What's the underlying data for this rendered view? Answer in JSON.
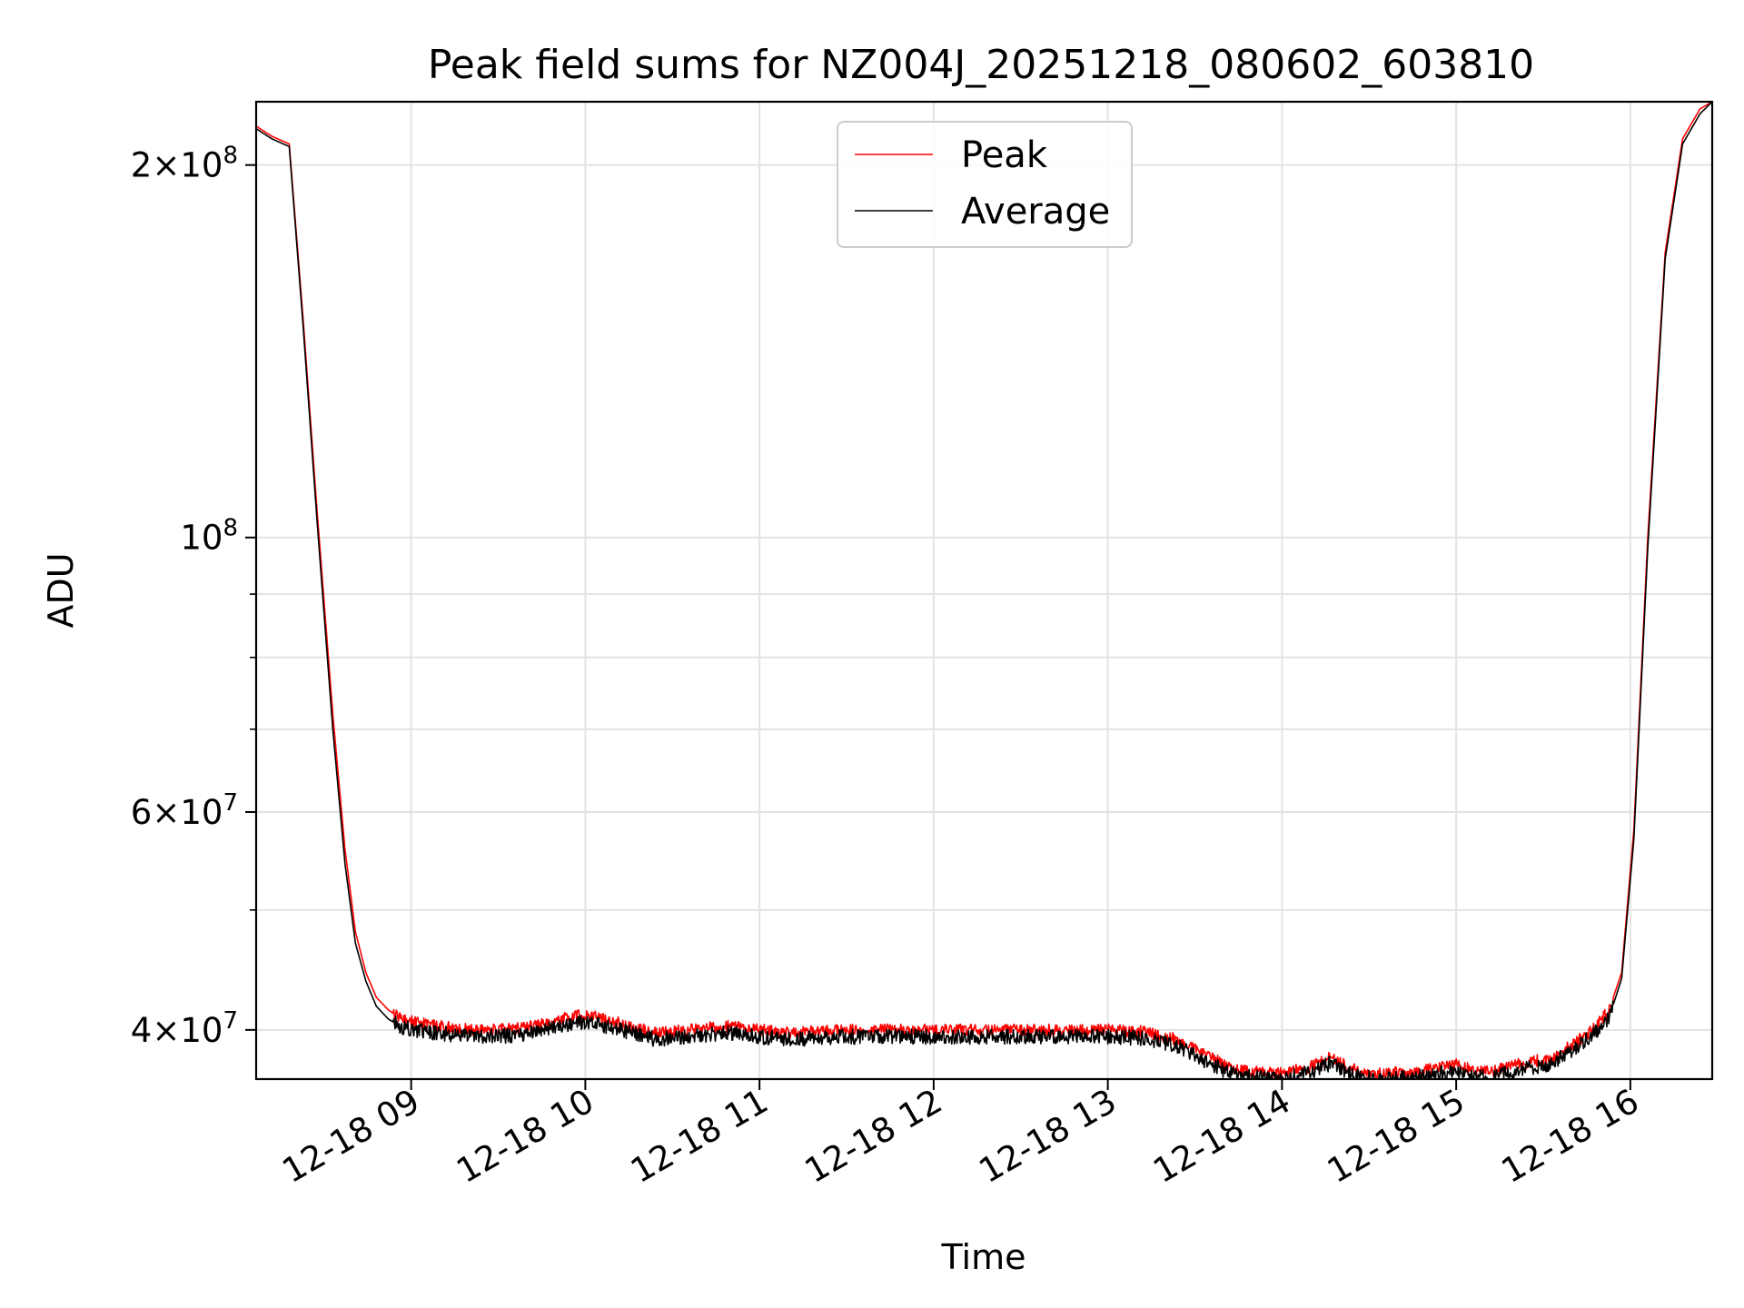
{
  "chart_data": {
    "type": "line",
    "title": "Peak field sums for NZ004J_20251218_080602_603810",
    "xlabel": "Time",
    "ylabel": "ADU",
    "yscale": "log",
    "xlim": [
      8.11,
      16.47
    ],
    "ylim": [
      36500000,
      225000000
    ],
    "grid": true,
    "legend_position": "upper center",
    "x_ticks": [
      {
        "value": 9,
        "label": "12-18 09"
      },
      {
        "value": 10,
        "label": "12-18 10"
      },
      {
        "value": 11,
        "label": "12-18 11"
      },
      {
        "value": 12,
        "label": "12-18 12"
      },
      {
        "value": 13,
        "label": "12-18 13"
      },
      {
        "value": 14,
        "label": "12-18 14"
      },
      {
        "value": 15,
        "label": "12-18 15"
      },
      {
        "value": 16,
        "label": "12-18 16"
      }
    ],
    "y_major_ticks": [
      {
        "value": 40000000,
        "mant": "4",
        "exp": "7"
      },
      {
        "value": 60000000,
        "mant": "6",
        "exp": "7"
      },
      {
        "value": 100000000,
        "mant": "",
        "exp": "8"
      },
      {
        "value": 200000000,
        "mant": "2",
        "exp": "8"
      }
    ],
    "y_minor_ticks": [
      50000000,
      70000000,
      80000000,
      90000000
    ],
    "x_unit": "hours (UTC, 2025-12-18)",
    "series": [
      {
        "name": "Peak",
        "color": "#ff0000",
        "x": [
          8.11,
          8.2,
          8.3,
          8.38,
          8.46,
          8.55,
          8.62,
          8.68,
          8.74,
          8.8,
          8.87,
          8.95,
          9.05,
          9.2,
          9.4,
          9.6,
          9.8,
          9.95,
          10.05,
          10.2,
          10.4,
          10.6,
          10.8,
          11.0,
          11.2,
          11.5,
          12.0,
          12.5,
          13.0,
          13.2,
          13.4,
          13.55,
          13.7,
          13.85,
          14.0,
          14.15,
          14.28,
          14.4,
          14.55,
          14.75,
          15.0,
          15.1,
          15.2,
          15.35,
          15.55,
          15.7,
          15.8,
          15.88,
          15.95,
          16.02,
          16.1,
          16.2,
          16.3,
          16.4,
          16.47
        ],
        "y": [
          215000000,
          211000000,
          208000000,
          150000000,
          105000000,
          72000000,
          56000000,
          48000000,
          44500000,
          42500000,
          41500000,
          40800000,
          40500000,
          40200000,
          40000000,
          40100000,
          40600000,
          41100000,
          41000000,
          40500000,
          39800000,
          40000000,
          40300000,
          40000000,
          39800000,
          40000000,
          40000000,
          40000000,
          40000000,
          39900000,
          39300000,
          38300000,
          37300000,
          37000000,
          36900000,
          37300000,
          38000000,
          37200000,
          36900000,
          37000000,
          37500000,
          37100000,
          37000000,
          37500000,
          38000000,
          39200000,
          40200000,
          41600000,
          44500000,
          58000000,
          100000000,
          170000000,
          210000000,
          222000000,
          225000000
        ]
      },
      {
        "name": "Average",
        "color": "#000000",
        "x": [
          8.11,
          8.2,
          8.3,
          8.38,
          8.46,
          8.55,
          8.62,
          8.68,
          8.74,
          8.8,
          8.87,
          8.95,
          9.05,
          9.2,
          9.4,
          9.6,
          9.8,
          9.95,
          10.05,
          10.2,
          10.4,
          10.6,
          10.8,
          11.0,
          11.2,
          11.5,
          12.0,
          12.5,
          13.0,
          13.2,
          13.4,
          13.55,
          13.7,
          13.85,
          14.0,
          14.15,
          14.28,
          14.4,
          14.55,
          14.75,
          15.0,
          15.1,
          15.2,
          15.35,
          15.55,
          15.7,
          15.8,
          15.88,
          15.95,
          16.02,
          16.1,
          16.2,
          16.3,
          16.4,
          16.47
        ],
        "y": [
          214000000,
          210000000,
          207000000,
          148000000,
          103000000,
          70000000,
          54500000,
          47000000,
          43800000,
          41800000,
          40800000,
          40200000,
          39900000,
          39700000,
          39500000,
          39600000,
          40100000,
          40600000,
          40500000,
          40000000,
          39300000,
          39500000,
          39800000,
          39500000,
          39300000,
          39500000,
          39500000,
          39500000,
          39500000,
          39400000,
          38800000,
          37800000,
          36900000,
          36600000,
          36500000,
          36900000,
          37600000,
          36800000,
          36500000,
          36600000,
          37100000,
          36700000,
          36600000,
          37100000,
          37600000,
          38800000,
          39800000,
          41000000,
          44000000,
          57000000,
          98000000,
          168000000,
          208000000,
          220000000,
          225000000
        ]
      }
    ]
  }
}
